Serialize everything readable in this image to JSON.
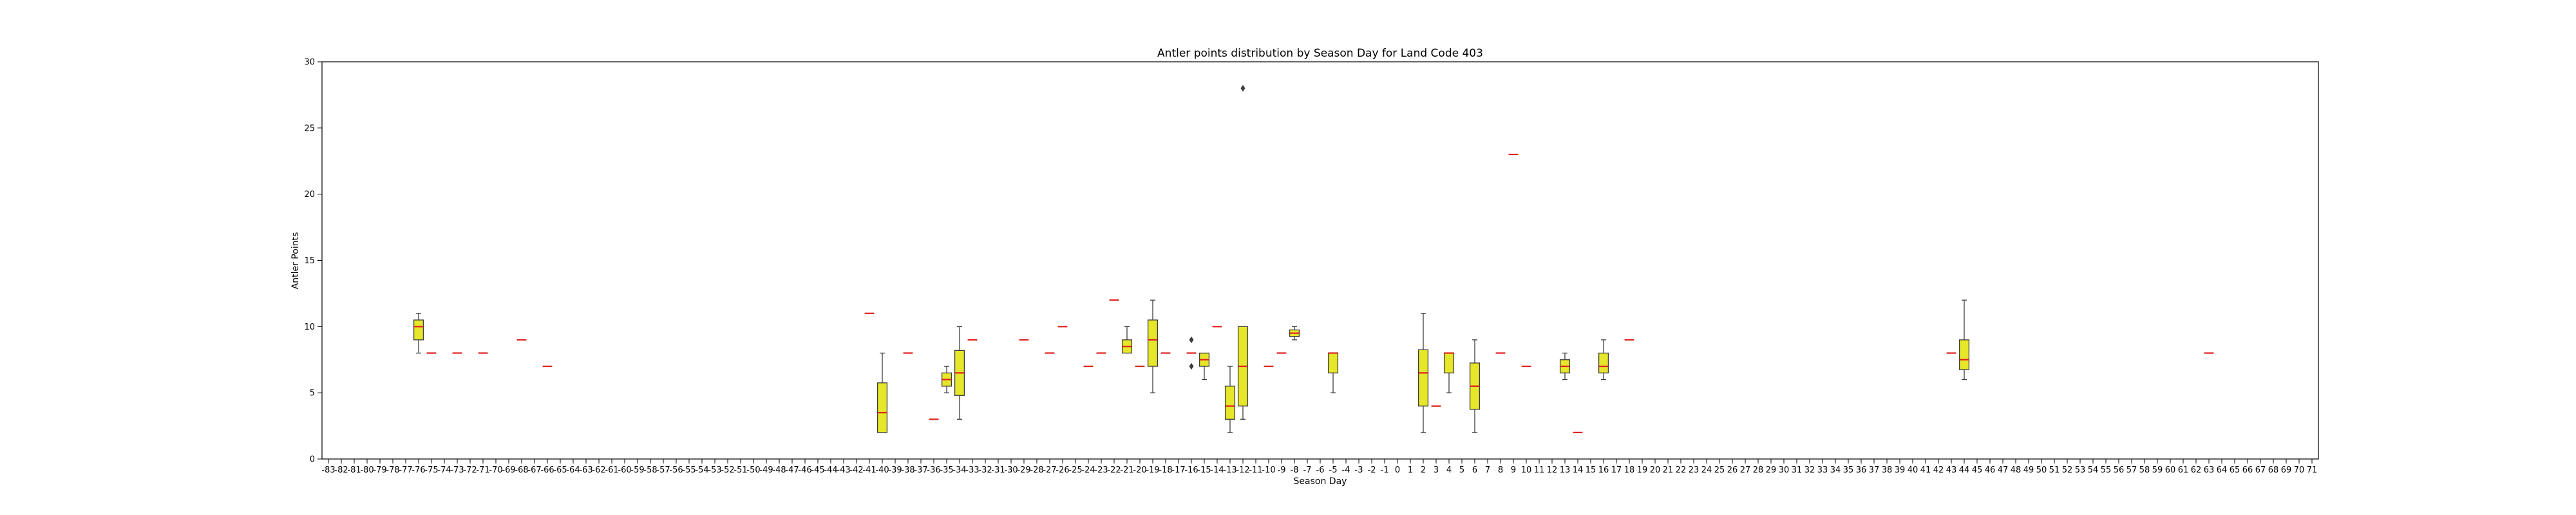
{
  "chart_data": {
    "type": "box",
    "title": "Antler points distribution by Season Day for Land Code 403",
    "xlabel": "Season Day",
    "ylabel": "Antler Points",
    "ylim": [
      0,
      30
    ],
    "yticks": [
      0,
      5,
      10,
      15,
      20,
      25,
      30
    ],
    "categories": [
      "-83",
      "-82",
      "-81",
      "-80",
      "-79",
      "-78",
      "-77",
      "-76",
      "-75",
      "-74",
      "-73",
      "-72",
      "-71",
      "-70",
      "-69",
      "-68",
      "-67",
      "-66",
      "-65",
      "-64",
      "-63",
      "-62",
      "-61",
      "-60",
      "-59",
      "-58",
      "-57",
      "-56",
      "-55",
      "-54",
      "-53",
      "-52",
      "-51",
      "-50",
      "-49",
      "-48",
      "-47",
      "-46",
      "-45",
      "-44",
      "-43",
      "-42",
      "-41",
      "-40",
      "-39",
      "-38",
      "-37",
      "-36",
      "-35",
      "-34",
      "-33",
      "-32",
      "-31",
      "-30",
      "-29",
      "-28",
      "-27",
      "-26",
      "-25",
      "-24",
      "-23",
      "-22",
      "-21",
      "-20",
      "-19",
      "-18",
      "-17",
      "-16",
      "-15",
      "-14",
      "-13",
      "-12",
      "-11",
      "-10",
      "-9",
      "-8",
      "-7",
      "-6",
      "-5",
      "-4",
      "-3",
      "-2",
      "-1",
      "0",
      "1",
      "2",
      "3",
      "4",
      "5",
      "6",
      "7",
      "8",
      "9",
      "10",
      "11",
      "12",
      "13",
      "14",
      "15",
      "16",
      "17",
      "18",
      "19",
      "20",
      "21",
      "22",
      "23",
      "24",
      "25",
      "26",
      "27",
      "28",
      "29",
      "30",
      "31",
      "32",
      "33",
      "34",
      "35",
      "36",
      "37",
      "38",
      "39",
      "40",
      "41",
      "42",
      "43",
      "44",
      "45",
      "46",
      "47",
      "48",
      "49",
      "50",
      "51",
      "52",
      "53",
      "54",
      "55",
      "56",
      "57",
      "58",
      "59",
      "60",
      "61",
      "62",
      "63",
      "64",
      "65",
      "66",
      "67",
      "68",
      "69",
      "70",
      "71"
    ],
    "boxes": [
      {
        "day": "-76",
        "min": 8,
        "q1": 9,
        "median": 10,
        "q3": 10.5,
        "max": 11,
        "fliers": []
      },
      {
        "day": "-75",
        "min": 8,
        "q1": 8,
        "median": 8,
        "q3": 8,
        "max": 8,
        "fliers": []
      },
      {
        "day": "-73",
        "min": 8,
        "q1": 8,
        "median": 8,
        "q3": 8,
        "max": 8,
        "fliers": []
      },
      {
        "day": "-71",
        "min": 8,
        "q1": 8,
        "median": 8,
        "q3": 8,
        "max": 8,
        "fliers": []
      },
      {
        "day": "-68",
        "min": 9,
        "q1": 9,
        "median": 9,
        "q3": 9,
        "max": 9,
        "fliers": []
      },
      {
        "day": "-66",
        "min": 7,
        "q1": 7,
        "median": 7,
        "q3": 7,
        "max": 7,
        "fliers": []
      },
      {
        "day": "-41",
        "min": 11,
        "q1": 11,
        "median": 11,
        "q3": 11,
        "max": 11,
        "fliers": []
      },
      {
        "day": "-40",
        "min": 2,
        "q1": 2,
        "median": 3.5,
        "q3": 5.75,
        "max": 8,
        "fliers": []
      },
      {
        "day": "-38",
        "min": 8,
        "q1": 8,
        "median": 8,
        "q3": 8,
        "max": 8,
        "fliers": []
      },
      {
        "day": "-36",
        "min": 3,
        "q1": 3,
        "median": 3,
        "q3": 3,
        "max": 3,
        "fliers": []
      },
      {
        "day": "-35",
        "min": 5,
        "q1": 5.5,
        "median": 6,
        "q3": 6.5,
        "max": 7,
        "fliers": []
      },
      {
        "day": "-34",
        "min": 3,
        "q1": 4.8,
        "median": 6.5,
        "q3": 8.2,
        "max": 10,
        "fliers": []
      },
      {
        "day": "-33",
        "min": 9,
        "q1": 9,
        "median": 9,
        "q3": 9,
        "max": 9,
        "fliers": []
      },
      {
        "day": "-29",
        "min": 9,
        "q1": 9,
        "median": 9,
        "q3": 9,
        "max": 9,
        "fliers": []
      },
      {
        "day": "-27",
        "min": 8,
        "q1": 8,
        "median": 8,
        "q3": 8,
        "max": 8,
        "fliers": []
      },
      {
        "day": "-26",
        "min": 10,
        "q1": 10,
        "median": 10,
        "q3": 10,
        "max": 10,
        "fliers": []
      },
      {
        "day": "-24",
        "min": 7,
        "q1": 7,
        "median": 7,
        "q3": 7,
        "max": 7,
        "fliers": []
      },
      {
        "day": "-23",
        "min": 8,
        "q1": 8,
        "median": 8,
        "q3": 8,
        "max": 8,
        "fliers": []
      },
      {
        "day": "-22",
        "min": 12,
        "q1": 12,
        "median": 12,
        "q3": 12,
        "max": 12,
        "fliers": []
      },
      {
        "day": "-21",
        "min": 8,
        "q1": 8,
        "median": 8.5,
        "q3": 9,
        "max": 10,
        "fliers": []
      },
      {
        "day": "-20",
        "min": 7,
        "q1": 7,
        "median": 7,
        "q3": 7,
        "max": 7,
        "fliers": []
      },
      {
        "day": "-19",
        "min": 5,
        "q1": 7,
        "median": 9,
        "q3": 10.5,
        "max": 12,
        "fliers": []
      },
      {
        "day": "-18",
        "min": 8,
        "q1": 8,
        "median": 8,
        "q3": 8,
        "max": 8,
        "fliers": []
      },
      {
        "day": "-16",
        "min": 8,
        "q1": 8,
        "median": 8,
        "q3": 8,
        "max": 8,
        "fliers": [
          7,
          9
        ]
      },
      {
        "day": "-15",
        "min": 6,
        "q1": 7,
        "median": 7.5,
        "q3": 8,
        "max": 8,
        "fliers": []
      },
      {
        "day": "-14",
        "min": 10,
        "q1": 10,
        "median": 10,
        "q3": 10,
        "max": 10,
        "fliers": []
      },
      {
        "day": "-13",
        "min": 2,
        "q1": 3,
        "median": 4,
        "q3": 5.5,
        "max": 7,
        "fliers": []
      },
      {
        "day": "-12",
        "min": 3,
        "q1": 4,
        "median": 7,
        "q3": 10,
        "max": 10,
        "fliers": [
          28
        ]
      },
      {
        "day": "-10",
        "min": 7,
        "q1": 7,
        "median": 7,
        "q3": 7,
        "max": 7,
        "fliers": []
      },
      {
        "day": "-9",
        "min": 8,
        "q1": 8,
        "median": 8,
        "q3": 8,
        "max": 8,
        "fliers": []
      },
      {
        "day": "-8",
        "min": 9,
        "q1": 9.25,
        "median": 9.5,
        "q3": 9.75,
        "max": 10,
        "fliers": []
      },
      {
        "day": "-5",
        "min": 5,
        "q1": 6.5,
        "median": 8,
        "q3": 8,
        "max": 8,
        "fliers": []
      },
      {
        "day": "2",
        "min": 2,
        "q1": 4,
        "median": 6.5,
        "q3": 8.25,
        "max": 11,
        "fliers": []
      },
      {
        "day": "3",
        "min": 4,
        "q1": 4,
        "median": 4,
        "q3": 4,
        "max": 4,
        "fliers": []
      },
      {
        "day": "4",
        "min": 5,
        "q1": 6.5,
        "median": 8,
        "q3": 8,
        "max": 8,
        "fliers": []
      },
      {
        "day": "6",
        "min": 2,
        "q1": 3.75,
        "median": 5.5,
        "q3": 7.25,
        "max": 9,
        "fliers": []
      },
      {
        "day": "8",
        "min": 8,
        "q1": 8,
        "median": 8,
        "q3": 8,
        "max": 8,
        "fliers": []
      },
      {
        "day": "9",
        "min": 23,
        "q1": 23,
        "median": 23,
        "q3": 23,
        "max": 23,
        "fliers": []
      },
      {
        "day": "10",
        "min": 7,
        "q1": 7,
        "median": 7,
        "q3": 7,
        "max": 7,
        "fliers": []
      },
      {
        "day": "13",
        "min": 6,
        "q1": 6.5,
        "median": 7,
        "q3": 7.5,
        "max": 8,
        "fliers": []
      },
      {
        "day": "14",
        "min": 2,
        "q1": 2,
        "median": 2,
        "q3": 2,
        "max": 2,
        "fliers": []
      },
      {
        "day": "16",
        "min": 6,
        "q1": 6.5,
        "median": 7,
        "q3": 8,
        "max": 9,
        "fliers": []
      },
      {
        "day": "18",
        "min": 9,
        "q1": 9,
        "median": 9,
        "q3": 9,
        "max": 9,
        "fliers": []
      },
      {
        "day": "43",
        "min": 8,
        "q1": 8,
        "median": 8,
        "q3": 8,
        "max": 8,
        "fliers": []
      },
      {
        "day": "44",
        "min": 6,
        "q1": 6.75,
        "median": 7.5,
        "q3": 9,
        "max": 12,
        "fliers": []
      },
      {
        "day": "63",
        "min": 8,
        "q1": 8,
        "median": 8,
        "q3": 8,
        "max": 8,
        "fliers": []
      }
    ],
    "colors": {
      "box_fill": "#e6e62a",
      "box_edge": "#3d3d3d",
      "median": "#e02020",
      "whisker": "#3d3d3d",
      "flier": "#3d3d3d"
    },
    "grid": false,
    "legend": "none"
  }
}
